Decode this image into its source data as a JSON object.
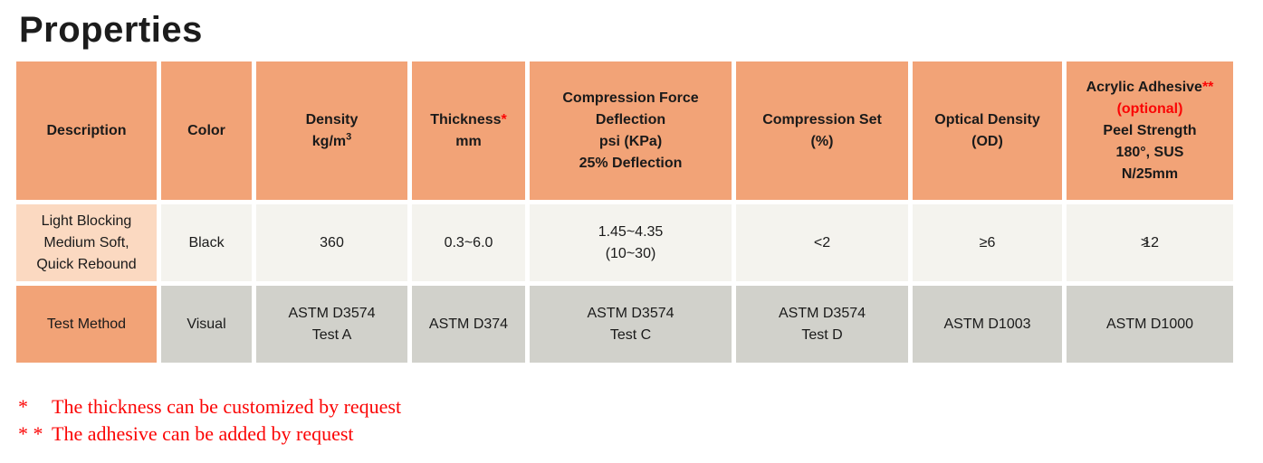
{
  "page": {
    "title": "Properties"
  },
  "table": {
    "headers": {
      "description": "Description",
      "color": "Color",
      "density": {
        "title": "Density",
        "unit": "kg/m",
        "sup": "3"
      },
      "thickness": {
        "title": "Thickness",
        "marker": "*",
        "unit": "mm"
      },
      "cfd": "Compression Force\nDeflection\npsi (KPa)\n25% Deflection",
      "compression_set": "Compression Set\n(%)",
      "optical_density": "Optical Density\n(OD)",
      "acrylic": {
        "title": "Acrylic Adhesive",
        "marker": "**",
        "optional": "(optional)",
        "details": "Peel Strength\n180°, SUS\nN/25mm"
      }
    },
    "data_row": {
      "description": "Light Blocking\nMedium Soft,\nQuick Rebound",
      "color": "Black",
      "density": "360",
      "thickness": "0.3~6.0",
      "cfd": "1.45~4.35\n(10~30)",
      "compression_set": "<2",
      "optical_density": "≥6",
      "peel": {
        "sym": ">",
        "num": "12"
      }
    },
    "test_row": {
      "label": "Test Method",
      "color": "Visual",
      "density": "ASTM D3574\nTest A",
      "thickness": "ASTM D374",
      "cfd": "ASTM D3574\nTest C",
      "compression_set": "ASTM D3574\nTest D",
      "optical_density": "ASTM D1003",
      "peel": "ASTM D1000"
    }
  },
  "footnotes": [
    {
      "marker": "*",
      "text": "The thickness can be customized by request"
    },
    {
      "marker": "* *",
      "text": "The adhesive can be added by request"
    }
  ],
  "colors": {
    "header_bg": "#F2A377",
    "description_cell_bg": "#FBD9C1",
    "data_row_bg": "#F4F3EE",
    "test_row_bg": "#D1D1CB",
    "note_red": "#FB0505",
    "text_black": "#1A1A1A"
  }
}
